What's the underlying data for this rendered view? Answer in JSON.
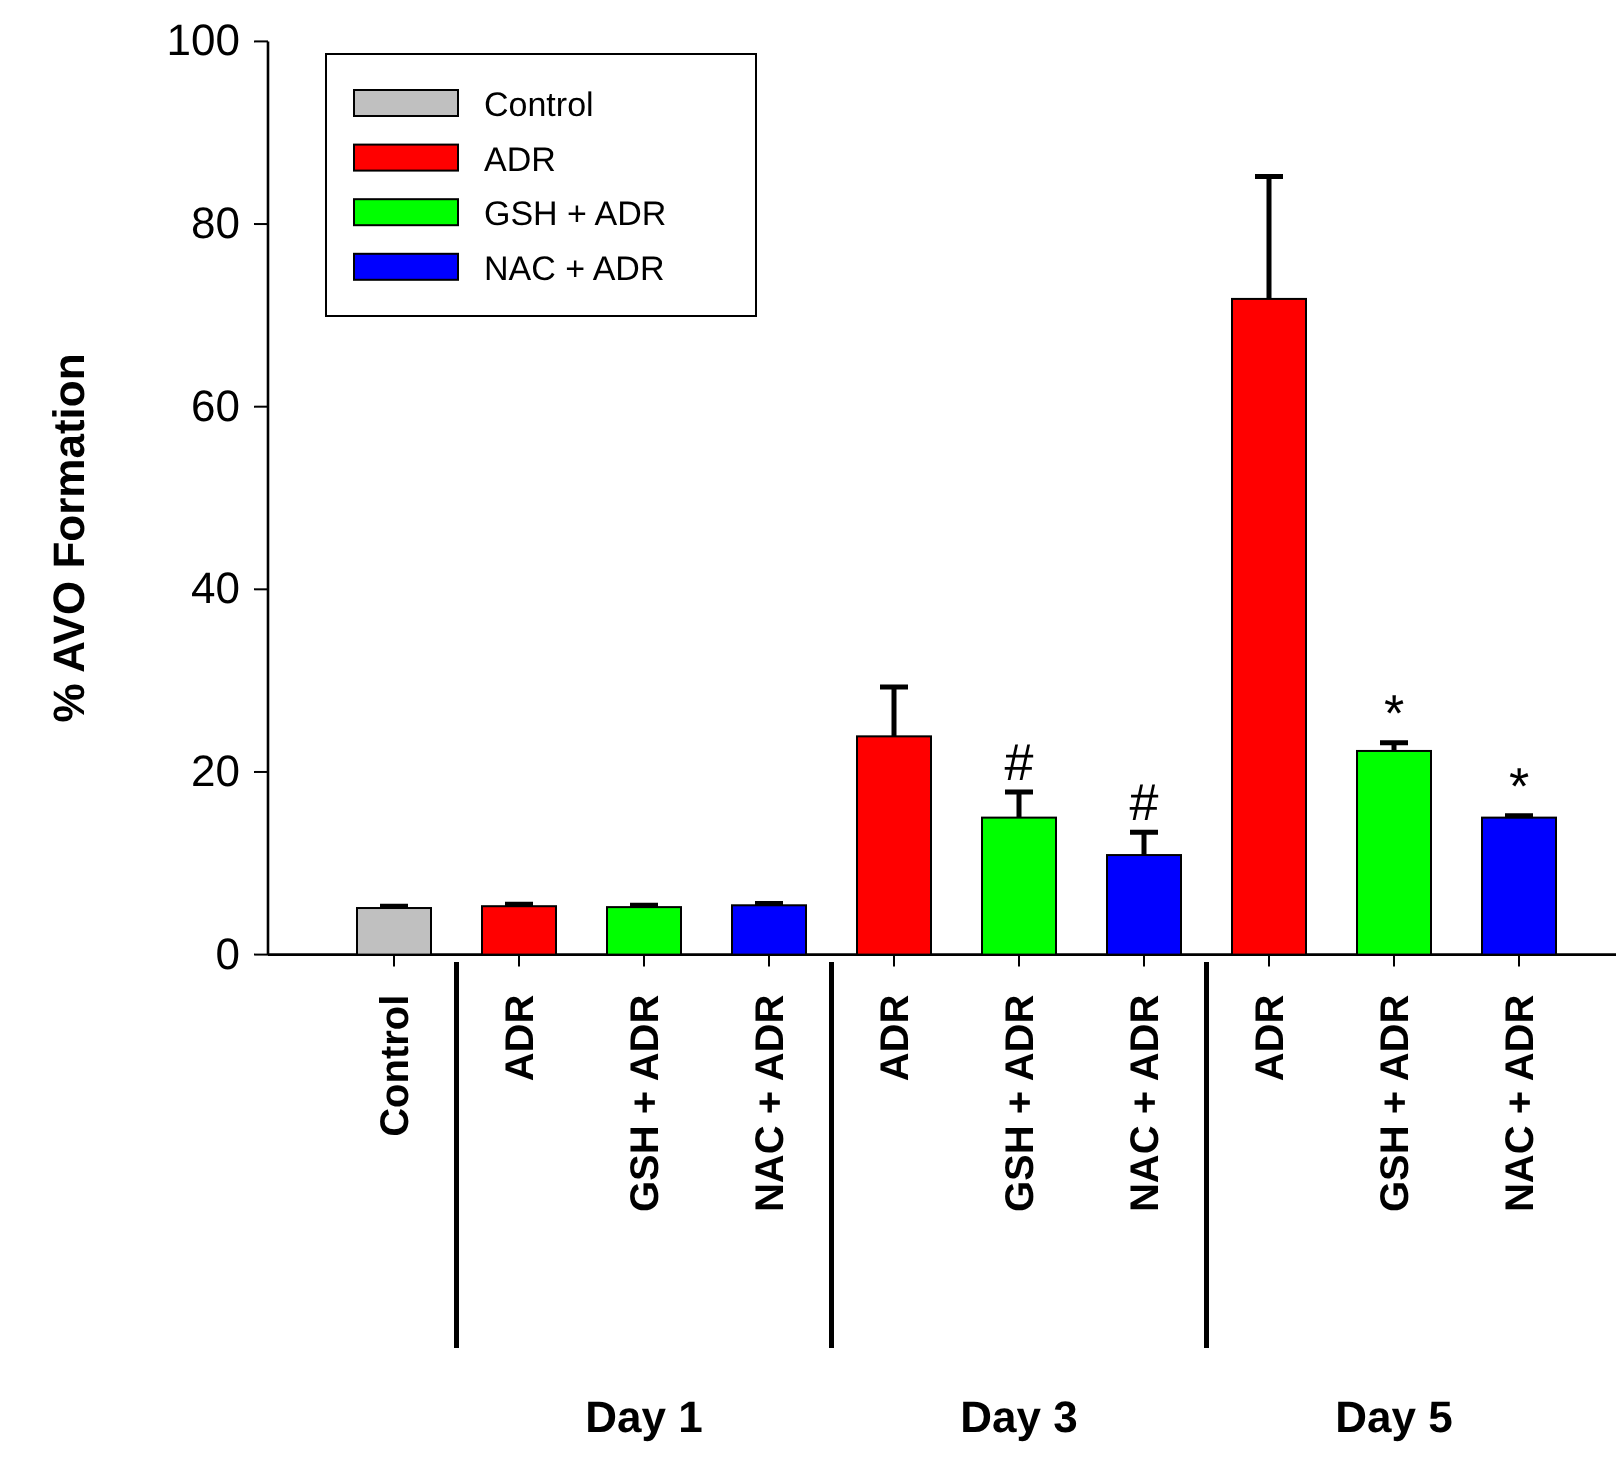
{
  "chart_data": {
    "type": "bar",
    "ylabel": "% AVO Formation",
    "categories": [
      "Control",
      "ADR",
      "GSH + ADR",
      "NAC + ADR",
      "ADR",
      "GSH + ADR",
      "NAC + ADR",
      "ADR",
      "GSH + ADR",
      "NAC + ADR"
    ],
    "series": [
      {
        "name": "Control",
        "color": "#c0c0c0",
        "values": [
          5.1,
          null,
          null,
          null,
          null,
          null,
          null,
          null,
          null,
          null
        ],
        "errors": [
          [
            5.1,
            5.3
          ],
          null,
          null,
          null,
          null,
          null,
          null,
          null,
          null,
          null
        ]
      },
      {
        "name": "ADR",
        "color": "#ff0000",
        "values": [
          null,
          5.3,
          null,
          null,
          23.9,
          null,
          null,
          71.8,
          null,
          null
        ],
        "errors": [
          null,
          [
            5.3,
            5.5
          ],
          null,
          null,
          [
            23.9,
            29.3
          ],
          null,
          null,
          [
            71.8,
            85.2
          ],
          null,
          null
        ]
      },
      {
        "name": "GSH + ADR",
        "color": "#00ff00",
        "values": [
          null,
          null,
          5.2,
          null,
          null,
          15.0,
          null,
          null,
          22.3,
          null
        ],
        "errors": [
          null,
          null,
          [
            5.2,
            5.4
          ],
          null,
          null,
          [
            15.0,
            17.8
          ],
          null,
          null,
          [
            22.3,
            23.2
          ],
          null
        ],
        "value_labels": [
          null,
          null,
          null,
          null,
          null,
          "#",
          null,
          null,
          "*",
          null
        ]
      },
      {
        "name": "NAC + ADR",
        "color": "#0000ff",
        "values": [
          null,
          null,
          null,
          5.4,
          null,
          null,
          10.9,
          null,
          null,
          15.0
        ],
        "errors": [
          null,
          null,
          null,
          [
            5.4,
            5.6
          ],
          null,
          null,
          [
            10.9,
            13.4
          ],
          null,
          null,
          [
            15.0,
            15.2
          ]
        ],
        "value_labels": [
          null,
          null,
          null,
          null,
          null,
          null,
          "#",
          null,
          null,
          "*"
        ]
      }
    ],
    "ylim": [
      0,
      100
    ],
    "yticks": [
      0,
      20,
      40,
      60,
      80,
      100
    ],
    "legend": "top left",
    "annotations": [
      "Day 1",
      "Day 3",
      "Day 5"
    ]
  }
}
